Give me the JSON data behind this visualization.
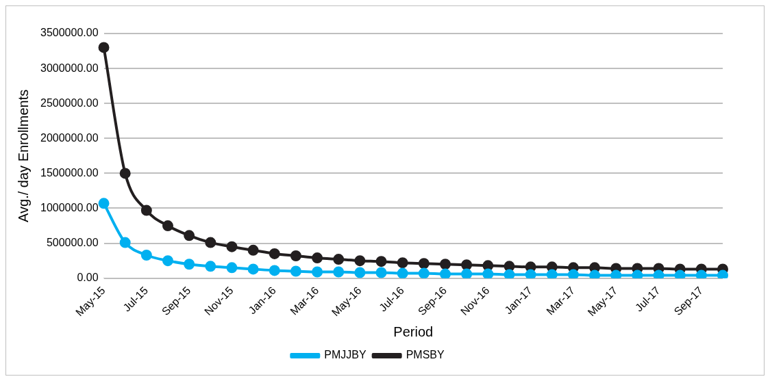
{
  "chart_data": {
    "type": "line",
    "xlabel": "Period",
    "ylabel": "Avg./ day Enrollments",
    "categories": [
      "May-15",
      null,
      "Jul-15",
      null,
      "Sep-15",
      null,
      "Nov-15",
      null,
      "Jan-16",
      null,
      "Mar-16",
      null,
      "May-16",
      null,
      "Jul-16",
      null,
      "Sep-16",
      null,
      "Nov-16",
      null,
      "Jan-17",
      null,
      "Mar-17",
      null,
      "May-17",
      null,
      "Jul-17",
      null,
      "Sep-17",
      null
    ],
    "series": [
      {
        "name": "PMJJBY",
        "color": "#00b0f0",
        "values": [
          1070000,
          510000,
          330000,
          250000,
          200000,
          170000,
          150000,
          130000,
          110000,
          100000,
          90000,
          90000,
          80000,
          80000,
          70000,
          70000,
          60000,
          60000,
          60000,
          50000,
          50000,
          50000,
          50000,
          40000,
          40000,
          40000,
          40000,
          40000,
          40000,
          40000
        ]
      },
      {
        "name": "PMSBY",
        "color": "#231f20",
        "values": [
          3300000,
          1500000,
          970000,
          750000,
          610000,
          510000,
          450000,
          400000,
          350000,
          320000,
          290000,
          270000,
          250000,
          240000,
          220000,
          210000,
          200000,
          190000,
          180000,
          170000,
          160000,
          160000,
          150000,
          150000,
          140000,
          140000,
          140000,
          130000,
          130000,
          130000
        ]
      }
    ],
    "ylim": [
      0,
      3500000
    ],
    "yticks": [
      {
        "value": 0,
        "label": "0.00"
      },
      {
        "value": 500000,
        "label": "500000.00"
      },
      {
        "value": 1000000,
        "label": "1000000.00"
      },
      {
        "value": 1500000,
        "label": "1500000.00"
      },
      {
        "value": 2000000,
        "label": "2000000.00"
      },
      {
        "value": 2500000,
        "label": "2500000.00"
      },
      {
        "value": 3000000,
        "label": "3000000.00"
      },
      {
        "value": 3500000,
        "label": "3500000.00"
      }
    ],
    "grid": "y",
    "legend": "bottom",
    "marker": "circle",
    "line_style": "solid"
  }
}
